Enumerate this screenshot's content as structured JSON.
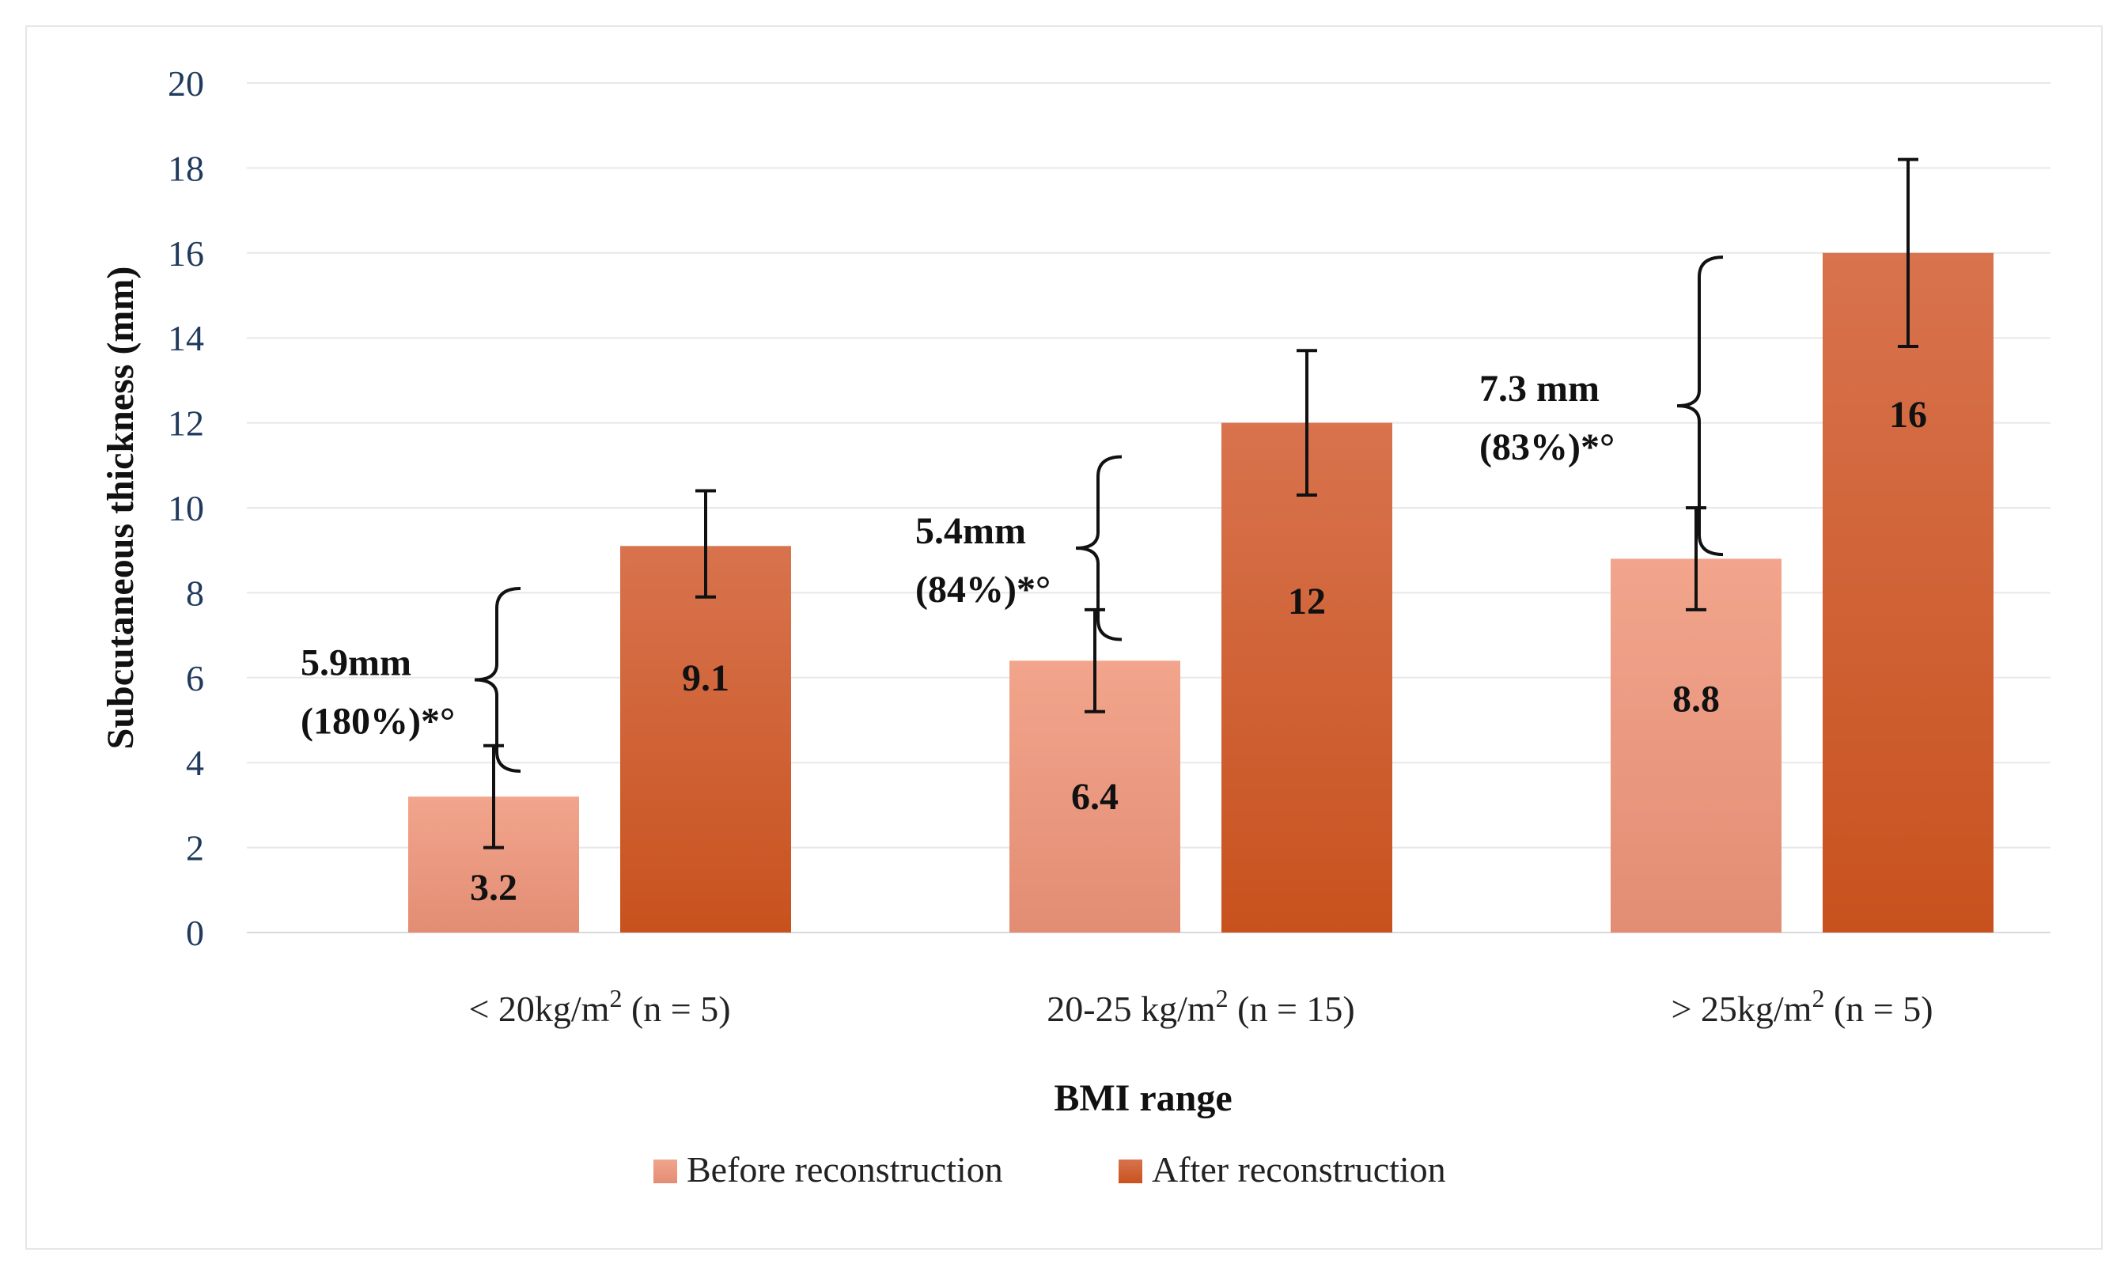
{
  "chart_data": {
    "type": "bar",
    "title": "",
    "xlabel": "BMI range",
    "ylabel": "Subcutaneous thickness  (mm)",
    "ylim": [
      0,
      20
    ],
    "yticks": [
      0,
      2,
      4,
      6,
      8,
      10,
      12,
      14,
      16,
      18,
      20
    ],
    "grid": true,
    "legend_position": "bottom",
    "categories": [
      {
        "base": "< 20kg/m",
        "sup": "2",
        "rest": "  (n = 5)"
      },
      {
        "base": "20-25 kg/m",
        "sup": "2",
        "rest": " (n = 15)"
      },
      {
        "base": "> 25kg/m",
        "sup": "2",
        "rest": "  (n = 5)"
      }
    ],
    "series": [
      {
        "name": "Before reconstruction",
        "color_top": "#f2a58c",
        "color_bottom": "#e28d74",
        "values": [
          3.2,
          6.4,
          8.8
        ],
        "labels": [
          "3.2",
          "6.4",
          "8.8"
        ],
        "error_low": [
          2.0,
          5.2,
          7.6
        ],
        "error_high": [
          4.4,
          7.6,
          10.0
        ]
      },
      {
        "name": "After reconstruction",
        "color_top": "#d8734e",
        "color_bottom": "#c8521e",
        "values": [
          9.1,
          12,
          16
        ],
        "labels": [
          "9.1",
          "12",
          "16"
        ],
        "error_low": [
          7.9,
          10.3,
          13.8
        ],
        "error_high": [
          10.4,
          13.7,
          18.2
        ]
      }
    ],
    "annotations": [
      {
        "line1": "5.9mm",
        "line2": "(180%)*°",
        "from": 3.8,
        "to": 8.1
      },
      {
        "line1": "5.4mm",
        "line2": "(84%)*°",
        "from": 6.9,
        "to": 11.2
      },
      {
        "line1": "7.3 mm",
        "line2": "(83%)*°",
        "from": 8.9,
        "to": 15.9
      }
    ]
  }
}
